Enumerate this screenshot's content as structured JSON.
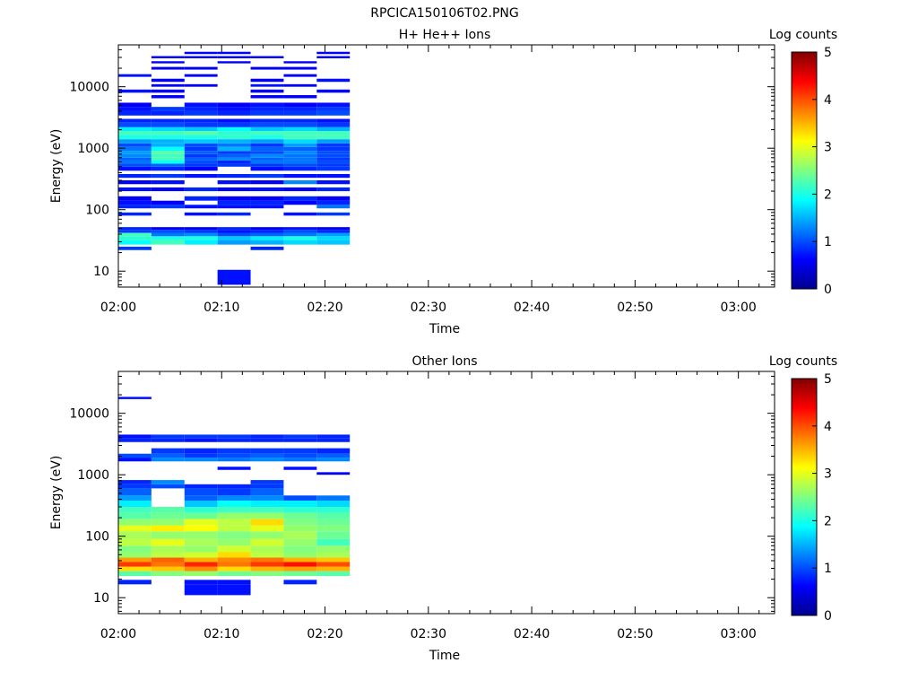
{
  "figure_title": "RPCICA150106T02.PNG",
  "colorscale": [
    "#00008f",
    "#0000ff",
    "#0080ff",
    "#00ffff",
    "#80ff80",
    "#ffff00",
    "#ff8000",
    "#ff0000",
    "#800000"
  ],
  "chart_data": [
    {
      "type": "heatmap",
      "title": "H+ He++ Ions",
      "xlabel": "Time",
      "ylabel": "Energy (eV)",
      "colorbar_label": "Log counts",
      "colorbar_ticks": [
        "0",
        "1",
        "2",
        "3",
        "4",
        "5"
      ],
      "colorbar_range": [
        0,
        5
      ],
      "x_ticks": [
        "02:00",
        "02:10",
        "02:20",
        "02:30",
        "02:40",
        "02:50",
        "03:00"
      ],
      "x_range_minutes": [
        0,
        63.5
      ],
      "y_scale": "log",
      "y_ticks": [
        "10",
        "100",
        "1000",
        "10000"
      ],
      "y_range": [
        5.5,
        48000
      ],
      "columns_start_minutes": [
        0,
        3.2,
        6.4,
        9.6,
        12.8,
        16.0,
        19.2
      ],
      "column_width_minutes": 3.2,
      "rows": [
        [
          22,
          25,
          [
            0.9,
            -1,
            -1,
            -1,
            0.8,
            -1,
            -1
          ]
        ],
        [
          27,
          32,
          [
            1.9,
            2.2,
            1.8,
            1.4,
            1.5,
            1.7,
            1.6
          ]
        ],
        [
          32,
          37,
          [
            2.1,
            2.0,
            2.0,
            1.6,
            1.8,
            2.0,
            1.7
          ]
        ],
        [
          37,
          42,
          [
            2.2,
            1.2,
            1.3,
            1.0,
            1.1,
            1.2,
            1.4
          ]
        ],
        [
          42,
          47,
          [
            0.9,
            1.0,
            0.9,
            0.7,
            0.8,
            1.0,
            0.8
          ]
        ],
        [
          47,
          52,
          [
            0.8,
            0.6,
            0.6,
            0.8,
            0.6,
            0.7,
            0.6
          ]
        ],
        [
          80,
          90,
          [
            0.8,
            -1,
            0.7,
            0.8,
            -1,
            0.7,
            0.9
          ]
        ],
        [
          105,
          120,
          [
            0.8,
            0.9,
            0.7,
            0.7,
            0.7,
            -1,
            1.2
          ]
        ],
        [
          120,
          140,
          [
            0.7,
            0.6,
            -1,
            0.8,
            0.8,
            0.6,
            0.8
          ]
        ],
        [
          140,
          165,
          [
            0.6,
            -1,
            0.8,
            0.6,
            0.6,
            0.8,
            0.6
          ]
        ],
        [
          200,
          230,
          [
            0.7,
            0.6,
            0.8,
            0.6,
            0.7,
            0.6,
            0.8
          ]
        ],
        [
          260,
          300,
          [
            0.6,
            0.7,
            -1,
            0.7,
            0.6,
            1.3,
            0.7
          ]
        ],
        [
          330,
          380,
          [
            0.8,
            0.9,
            0.7,
            0.8,
            0.9,
            0.7,
            0.7
          ]
        ],
        [
          430,
          500,
          [
            0.7,
            0.8,
            0.6,
            -1,
            0.7,
            0.8,
            0.9
          ]
        ],
        [
          500,
          560,
          [
            1.0,
            1.1,
            0.9,
            0.9,
            0.9,
            1.0,
            0.9
          ]
        ],
        [
          560,
          630,
          [
            1.2,
            1.9,
            1.0,
            0.8,
            1.2,
            1.2,
            1.0
          ]
        ],
        [
          630,
          700,
          [
            1.1,
            2.2,
            1.1,
            1.3,
            1.1,
            1.2,
            0.9
          ]
        ],
        [
          700,
          800,
          [
            1.3,
            2.2,
            0.9,
            1.1,
            1.3,
            1.2,
            1.0
          ]
        ],
        [
          800,
          900,
          [
            1.4,
            2.3,
            1.1,
            0.9,
            1.0,
            1.3,
            1.0
          ]
        ],
        [
          900,
          1050,
          [
            1.2,
            1.9,
            0.9,
            1.5,
            1.1,
            1.1,
            0.9
          ]
        ],
        [
          1050,
          1200,
          [
            1.0,
            1.5,
            1.0,
            1.2,
            0.9,
            1.4,
            0.9
          ]
        ],
        [
          1200,
          1400,
          [
            1.4,
            1.5,
            1.6,
            1.5,
            1.4,
            1.7,
            1.4
          ]
        ],
        [
          1400,
          1650,
          [
            2.0,
            2.0,
            2.0,
            2.1,
            2.0,
            2.2,
            2.2
          ]
        ],
        [
          1650,
          1900,
          [
            2.2,
            2.2,
            2.3,
            2.1,
            2.2,
            2.2,
            2.2
          ]
        ],
        [
          1900,
          2200,
          [
            1.8,
            1.7,
            1.6,
            1.9,
            1.6,
            1.7,
            1.5
          ]
        ],
        [
          2200,
          2600,
          [
            1.0,
            1.0,
            0.9,
            0.9,
            1.0,
            1.0,
            0.9
          ]
        ],
        [
          2600,
          3000,
          [
            0.8,
            0.8,
            0.8,
            0.7,
            0.8,
            0.8,
            0.7
          ]
        ],
        [
          3400,
          4000,
          [
            0.8,
            0.8,
            0.9,
            0.8,
            0.9,
            0.9,
            1.0
          ]
        ],
        [
          4000,
          4700,
          [
            0.7,
            0.9,
            0.8,
            0.7,
            0.8,
            0.8,
            0.9
          ]
        ],
        [
          4700,
          5500,
          [
            0.6,
            -1,
            0.7,
            0.6,
            0.7,
            0.6,
            0.7
          ]
        ],
        [
          6500,
          7300,
          [
            -1,
            0.6,
            -1,
            -1,
            0.6,
            0.6,
            -1
          ]
        ],
        [
          8000,
          9000,
          [
            0.7,
            0.6,
            -1,
            -1,
            0.6,
            -1,
            0.6
          ]
        ],
        [
          10000,
          11000,
          [
            -1,
            0.6,
            0.6,
            -1,
            0.7,
            0.6,
            -1
          ]
        ],
        [
          12000,
          13500,
          [
            -1,
            0.6,
            -1,
            -1,
            0.6,
            -1,
            0.7
          ]
        ],
        [
          14500,
          16000,
          [
            0.7,
            -1,
            0.6,
            -1,
            -1,
            0.6,
            -1
          ]
        ],
        [
          19000,
          21000,
          [
            -1,
            0.6,
            0.6,
            -1,
            0.6,
            0.6,
            -1
          ]
        ],
        [
          24000,
          26000,
          [
            -1,
            0.6,
            -1,
            0.6,
            -1,
            0.6,
            -1
          ]
        ],
        [
          29000,
          31500,
          [
            -1,
            0.6,
            0.6,
            0.6,
            0.6,
            -1,
            0.6
          ]
        ],
        [
          34000,
          37000,
          [
            -1,
            -1,
            0.6,
            0.6,
            -1,
            -1,
            0.6
          ]
        ],
        [
          6,
          10.5,
          [
            -1,
            -1,
            -1,
            0.7,
            -1,
            -1,
            -1
          ]
        ]
      ]
    },
    {
      "type": "heatmap",
      "title": "Other Ions",
      "xlabel": "Time",
      "ylabel": "Energy (eV)",
      "colorbar_label": "Log counts",
      "colorbar_ticks": [
        "0",
        "1",
        "2",
        "3",
        "4",
        "5"
      ],
      "colorbar_range": [
        0,
        5
      ],
      "x_ticks": [
        "02:00",
        "02:10",
        "02:20",
        "02:30",
        "02:40",
        "02:50",
        "03:00"
      ],
      "x_range_minutes": [
        0,
        63.5
      ],
      "y_scale": "log",
      "y_ticks": [
        "10",
        "100",
        "1000",
        "10000"
      ],
      "y_range": [
        5.5,
        48000
      ],
      "columns_start_minutes": [
        0,
        3.2,
        6.4,
        9.6,
        12.8,
        16.0,
        19.2
      ],
      "column_width_minutes": 3.2,
      "rows": [
        [
          16.5,
          19.5,
          [
            0.8,
            -1,
            0.7,
            0.7,
            -1,
            0.8,
            -1
          ]
        ],
        [
          11,
          16.5,
          [
            -1,
            -1,
            0.7,
            0.7,
            -1,
            -1,
            -1
          ]
        ],
        [
          22.5,
          27,
          [
            2.3,
            2.5,
            2.6,
            2.4,
            2.5,
            2.4,
            2.3
          ]
        ],
        [
          27,
          32,
          [
            3.3,
            3.4,
            3.7,
            3.3,
            3.5,
            3.6,
            3.5
          ]
        ],
        [
          32,
          38,
          [
            4.1,
            3.8,
            4.2,
            3.8,
            4.1,
            4.3,
            4.0
          ]
        ],
        [
          38,
          45,
          [
            3.6,
            3.9,
            3.5,
            3.7,
            3.8,
            3.5,
            3.4
          ]
        ],
        [
          45,
          55,
          [
            2.6,
            2.8,
            2.9,
            3.3,
            2.8,
            2.6,
            2.7
          ]
        ],
        [
          55,
          70,
          [
            2.5,
            2.7,
            2.6,
            2.9,
            2.7,
            2.5,
            2.6
          ]
        ],
        [
          70,
          90,
          [
            2.8,
            3.0,
            2.7,
            2.6,
            2.9,
            2.6,
            2.2
          ]
        ],
        [
          90,
          120,
          [
            2.7,
            2.6,
            2.6,
            2.5,
            2.6,
            2.7,
            2.4
          ]
        ],
        [
          120,
          150,
          [
            3.0,
            3.2,
            3.1,
            2.8,
            3.0,
            2.6,
            2.5
          ]
        ],
        [
          150,
          190,
          [
            2.6,
            2.6,
            3.0,
            2.8,
            3.3,
            2.5,
            2.4
          ]
        ],
        [
          190,
          240,
          [
            2.3,
            2.4,
            2.4,
            2.6,
            2.6,
            2.4,
            2.3
          ]
        ],
        [
          240,
          300,
          [
            2.2,
            2.3,
            2.1,
            2.2,
            2.2,
            2.1,
            2.1
          ]
        ],
        [
          300,
          380,
          [
            1.8,
            -1,
            1.6,
            1.9,
            1.8,
            1.8,
            1.7
          ]
        ],
        [
          380,
          460,
          [
            1.4,
            -1,
            1.1,
            1.3,
            1.3,
            1.0,
            1.2
          ]
        ],
        [
          460,
          600,
          [
            1.1,
            -1,
            1.0,
            0.9,
            1.1,
            -1,
            -1
          ]
        ],
        [
          600,
          700,
          [
            0.9,
            1.0,
            0.8,
            0.8,
            0.9,
            -1,
            -1
          ]
        ],
        [
          700,
          820,
          [
            0.8,
            1.3,
            -1,
            -1,
            0.9,
            -1,
            -1
          ]
        ],
        [
          1000,
          1100,
          [
            -1,
            -1,
            -1,
            -1,
            -1,
            -1,
            0.6
          ]
        ],
        [
          1200,
          1350,
          [
            -1,
            -1,
            -1,
            0.7,
            -1,
            0.7,
            -1
          ]
        ],
        [
          1650,
          1900,
          [
            0.7,
            1.3,
            1.3,
            1.2,
            1.3,
            1.2,
            1.3
          ]
        ],
        [
          1900,
          2200,
          [
            1.0,
            1.1,
            0.9,
            1.0,
            1.1,
            1.0,
            1.1
          ]
        ],
        [
          2200,
          2700,
          [
            -1,
            0.9,
            0.8,
            0.9,
            0.9,
            0.9,
            0.8
          ]
        ],
        [
          3400,
          3900,
          [
            0.8,
            0.8,
            0.7,
            0.8,
            0.8,
            0.8,
            0.8
          ]
        ],
        [
          3900,
          4500,
          [
            0.7,
            0.9,
            0.9,
            0.9,
            0.8,
            0.9,
            0.8
          ]
        ],
        [
          17000,
          18500,
          [
            0.7,
            -1,
            -1,
            -1,
            -1,
            -1,
            -1
          ]
        ]
      ]
    }
  ]
}
